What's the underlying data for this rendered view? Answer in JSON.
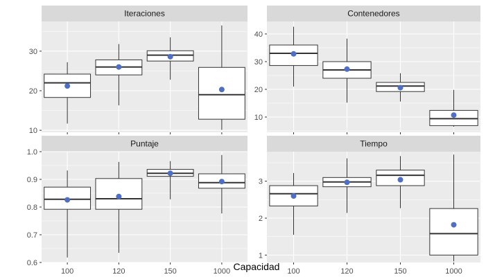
{
  "figure": {
    "xlabel": "Capacidad"
  },
  "colors": {
    "panel": "#ebebeb",
    "strip": "#d9d9d9",
    "grid": "#ffffff",
    "mean_point": "#4f6fc5",
    "box_fill": "#ffffff",
    "box_line": "#333333"
  },
  "chart_data": [
    {
      "type": "boxplot",
      "title": "Iteraciones",
      "categories": [
        "100",
        "120",
        "150",
        "1000"
      ],
      "ylim": [
        9.5,
        37.5
      ],
      "yticks": [
        10,
        20,
        30
      ],
      "ytick_labels": [
        "10",
        "20",
        "30"
      ],
      "boxes": [
        {
          "min": 11.7,
          "q1": 18.3,
          "median": 22.0,
          "q3": 24.2,
          "max": 27.2,
          "mean": 21.2
        },
        {
          "min": 16.3,
          "q1": 24.0,
          "median": 26.0,
          "q3": 27.8,
          "max": 31.8,
          "mean": 26.0
        },
        {
          "min": 22.8,
          "q1": 27.5,
          "median": 29.0,
          "q3": 30.1,
          "max": 33.5,
          "mean": 28.6
        },
        {
          "min": 10.1,
          "q1": 12.8,
          "median": 19.0,
          "q3": 25.9,
          "max": 36.5,
          "mean": 20.3
        }
      ]
    },
    {
      "type": "boxplot",
      "title": "Contenedores",
      "categories": [
        "100",
        "120",
        "150",
        "1000"
      ],
      "ylim": [
        4.5,
        44.5
      ],
      "yticks": [
        10,
        20,
        30,
        40
      ],
      "ytick_labels": [
        "10",
        "20",
        "30",
        "40"
      ],
      "boxes": [
        {
          "min": 21.0,
          "q1": 28.6,
          "median": 33.0,
          "q3": 36.0,
          "max": 42.6,
          "mean": 32.8
        },
        {
          "min": 15.2,
          "q1": 24.0,
          "median": 27.0,
          "q3": 30.0,
          "max": 38.3,
          "mean": 27.3
        },
        {
          "min": 15.6,
          "q1": 19.2,
          "median": 21.2,
          "q3": 22.5,
          "max": 25.8,
          "mean": 20.6
        },
        {
          "min": 6.5,
          "q1": 6.9,
          "median": 9.4,
          "q3": 12.4,
          "max": 19.8,
          "mean": 10.7
        }
      ]
    },
    {
      "type": "boxplot",
      "title": "Puntaje",
      "categories": [
        "100",
        "120",
        "150",
        "1000"
      ],
      "ylim": [
        0.6,
        1.0
      ],
      "yticks": [
        0.6,
        0.7,
        0.8,
        0.9,
        1.0
      ],
      "ytick_labels": [
        "0.6",
        "0.7",
        "0.8",
        "0.9",
        "1.0"
      ],
      "boxes": [
        {
          "min": 0.618,
          "q1": 0.792,
          "median": 0.828,
          "q3": 0.872,
          "max": 0.932,
          "mean": 0.826
        },
        {
          "min": 0.635,
          "q1": 0.792,
          "median": 0.83,
          "q3": 0.903,
          "max": 0.963,
          "mean": 0.838
        },
        {
          "min": 0.828,
          "q1": 0.911,
          "median": 0.922,
          "q3": 0.936,
          "max": 0.966,
          "mean": 0.922
        },
        {
          "min": 0.777,
          "q1": 0.868,
          "median": 0.888,
          "q3": 0.92,
          "max": 0.988,
          "mean": 0.892
        }
      ]
    },
    {
      "type": "boxplot",
      "title": "Tiempo",
      "categories": [
        "100",
        "120",
        "150",
        "1000"
      ],
      "ylim": [
        0.8,
        3.8
      ],
      "yticks": [
        1,
        2,
        3
      ],
      "ytick_labels": [
        "1",
        "2",
        "3"
      ],
      "boxes": [
        {
          "min": 1.55,
          "q1": 2.33,
          "median": 2.66,
          "q3": 2.88,
          "max": 3.22,
          "mean": 2.6
        },
        {
          "min": 2.14,
          "q1": 2.85,
          "median": 2.98,
          "q3": 3.1,
          "max": 3.62,
          "mean": 2.97
        },
        {
          "min": 2.27,
          "q1": 2.88,
          "median": 3.16,
          "q3": 3.3,
          "max": 3.68,
          "mean": 3.04
        },
        {
          "min": 0.83,
          "q1": 1.0,
          "median": 1.58,
          "q3": 2.26,
          "max": 3.72,
          "mean": 1.82
        }
      ]
    }
  ]
}
